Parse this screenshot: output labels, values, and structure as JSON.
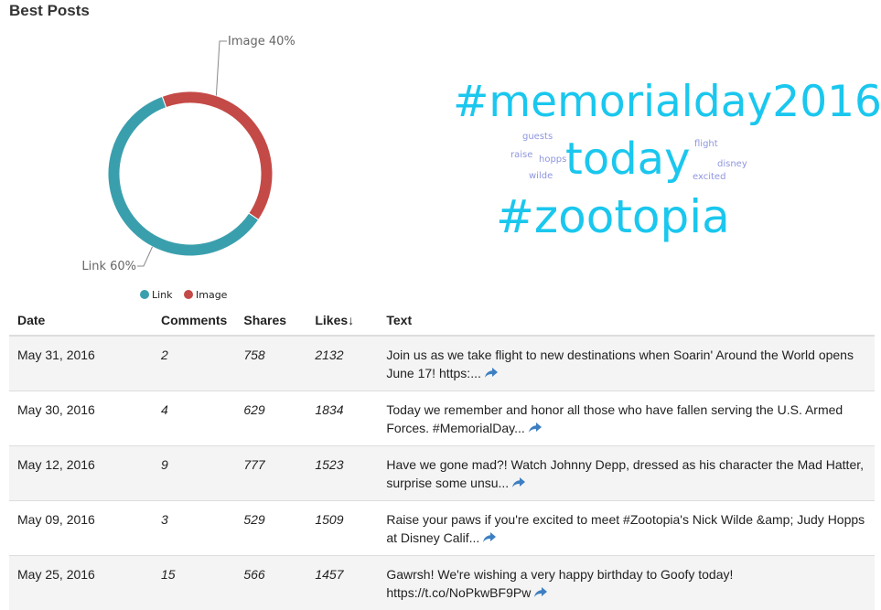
{
  "header": {
    "title": "Best Posts"
  },
  "chart_data": {
    "type": "pie",
    "donut": true,
    "categories": [
      "Link",
      "Image"
    ],
    "values": [
      60,
      40
    ],
    "labels": [
      "Link 60%",
      "Image 40%"
    ],
    "colors": [
      "#3a9fad",
      "#c44a47"
    ],
    "legend": {
      "placement": "bottom",
      "entries": [
        "Link",
        "Image"
      ]
    }
  },
  "word_cloud": {
    "words": [
      {
        "text": "#memorialday2016",
        "size": "large"
      },
      {
        "text": "today",
        "size": "large"
      },
      {
        "text": "#zootopia",
        "size": "large"
      },
      {
        "text": "guests",
        "size": "small"
      },
      {
        "text": "raise",
        "size": "small"
      },
      {
        "text": "hopps",
        "size": "small"
      },
      {
        "text": "wilde",
        "size": "small"
      },
      {
        "text": "flight",
        "size": "small"
      },
      {
        "text": "disney",
        "size": "small"
      },
      {
        "text": "excited",
        "size": "small"
      }
    ],
    "colors": {
      "large": "#1ac7ee",
      "small": "#8f96df"
    }
  },
  "table": {
    "columns": [
      "Date",
      "Comments",
      "Shares",
      "Likes↓",
      "Text"
    ],
    "rows": [
      {
        "date": "May 31, 2016",
        "comments": "2",
        "shares": "758",
        "likes": "2132",
        "text": "Join us as we take flight to new destinations when Soarin' Around the World opens June 17! https:..."
      },
      {
        "date": "May 30, 2016",
        "comments": "4",
        "shares": "629",
        "likes": "1834",
        "text": "Today we remember and honor all those who have fallen serving the U.S. Armed Forces. #MemorialDay..."
      },
      {
        "date": "May 12, 2016",
        "comments": "9",
        "shares": "777",
        "likes": "1523",
        "text": "Have we gone mad?! Watch Johnny Depp, dressed as his character the Mad Hatter, surprise some unsu..."
      },
      {
        "date": "May 09, 2016",
        "comments": "3",
        "shares": "529",
        "likes": "1509",
        "text": "Raise your paws if you're excited to meet #Zootopia's Nick Wilde &amp; Judy Hopps at Disney Calif..."
      },
      {
        "date": "May 25, 2016",
        "comments": "15",
        "shares": "566",
        "likes": "1457",
        "text": "Gawrsh! We're wishing a very happy birthday to Goofy today! https://t.co/NoPkwBF9Pw"
      }
    ],
    "share_icon": "share-arrow-icon",
    "link_color": "#3d7fc2"
  }
}
